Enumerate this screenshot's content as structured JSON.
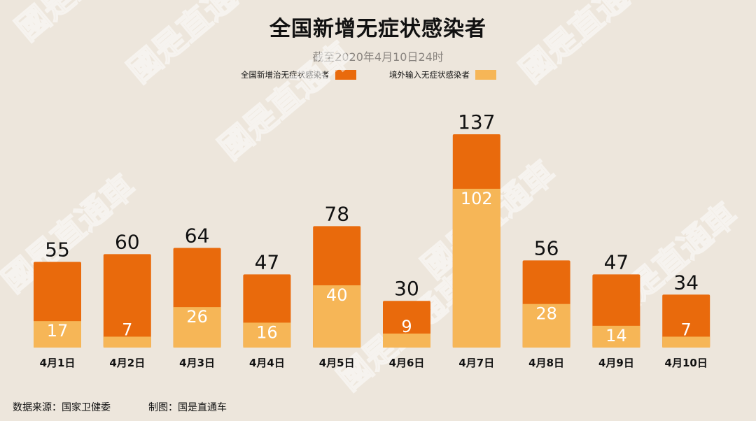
{
  "chart_data": {
    "type": "bar",
    "stacked": true,
    "title": "全国新增无症状感染者",
    "subtitle": "截至2020年4月10日24时",
    "categories": [
      "4月1日",
      "4月2日",
      "4月3日",
      "4月4日",
      "4月5日",
      "4月6日",
      "4月7日",
      "4月8日",
      "4月9日",
      "4月10日"
    ],
    "series": [
      {
        "name": "境外输入无症状感染者",
        "color": "#f6b657",
        "values": [
          17,
          7,
          26,
          16,
          40,
          9,
          102,
          28,
          14,
          7
        ]
      },
      {
        "name": "全国新增治无症状感染者",
        "color": "#e96a0c",
        "values": [
          38,
          53,
          38,
          31,
          38,
          21,
          35,
          28,
          33,
          27
        ]
      }
    ],
    "totals": [
      55,
      60,
      64,
      47,
      78,
      30,
      137,
      56,
      47,
      34
    ],
    "legend_order": [
      1,
      0
    ],
    "ylim": [
      0,
      137
    ],
    "grid": false,
    "legend_position": "top-center",
    "source": "数据来源：国家卫健委",
    "credit": "制图：国是直通车",
    "watermark": "國是直通車",
    "colors": {
      "background": "#ede6dc",
      "total_label": "#111111",
      "inner_label": "#ffffff"
    }
  }
}
